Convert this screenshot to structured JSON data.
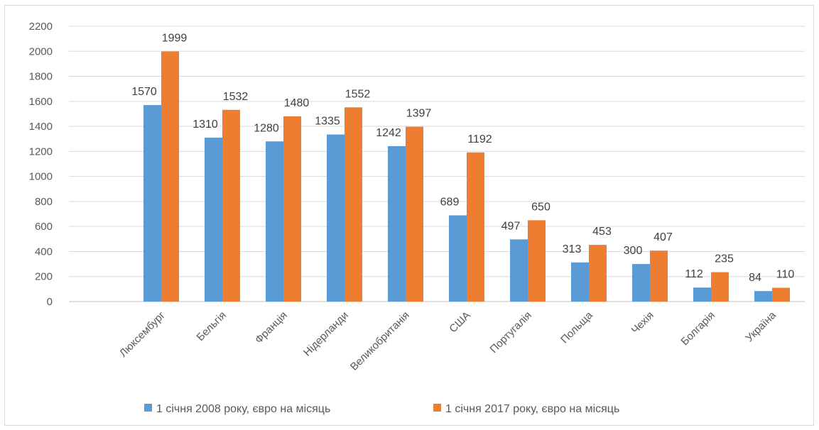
{
  "chart_data": {
    "type": "bar",
    "categories": [
      "Люксембург",
      "Бельгія",
      "Франція",
      "Нідерланди",
      "Великобританія",
      "США",
      "Португалія",
      "Польща",
      "Чехія",
      "Болгарія",
      "Україна"
    ],
    "series": [
      {
        "name": "1 січня 2008 року, євро на місяць",
        "color": "#5b9bd5",
        "values": [
          1570,
          1310,
          1280,
          1335,
          1242,
          689,
          497,
          313,
          300,
          112,
          84
        ]
      },
      {
        "name": "1 січня 2017 року, євро на місяць",
        "color": "#ed7d31",
        "values": [
          1999,
          1532,
          1480,
          1552,
          1397,
          1192,
          650,
          453,
          407,
          235,
          110
        ]
      }
    ],
    "ylim": [
      0,
      2200
    ],
    "yticks": [
      0,
      200,
      400,
      600,
      800,
      1000,
      1200,
      1400,
      1600,
      1800,
      2000,
      2200
    ],
    "grid": true,
    "data_labels": true,
    "legend_position": "bottom",
    "title": "",
    "xlabel": "",
    "ylabel": ""
  }
}
